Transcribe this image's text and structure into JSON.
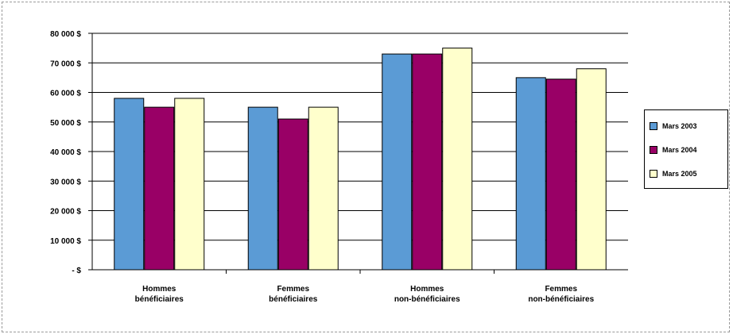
{
  "chart_data": {
    "type": "bar",
    "categories": [
      [
        "Hommes",
        "bénéficiaires"
      ],
      [
        "Femmes",
        "bénéficiaires"
      ],
      [
        "Hommes",
        "non-bénéficiaires"
      ],
      [
        "Femmes",
        "non-bénéficiaires"
      ]
    ],
    "series": [
      {
        "name": "Mars 2003",
        "color": "#5b9bd5",
        "values": [
          58000,
          55000,
          73000,
          65000
        ]
      },
      {
        "name": "Mars 2004",
        "color": "#990066",
        "values": [
          55000,
          51000,
          73000,
          64500
        ]
      },
      {
        "name": "Mars 2005",
        "color": "#ffffcc",
        "values": [
          58000,
          55000,
          75000,
          68000
        ]
      }
    ],
    "ylim": [
      0,
      80000
    ],
    "yticks": [
      {
        "value": 80000,
        "label": "80 000 $"
      },
      {
        "value": 70000,
        "label": "70 000 $"
      },
      {
        "value": 60000,
        "label": "60 000 $"
      },
      {
        "value": 50000,
        "label": "50 000 $"
      },
      {
        "value": 40000,
        "label": "40 000 $"
      },
      {
        "value": 30000,
        "label": "30 000 $"
      },
      {
        "value": 20000,
        "label": "20 000 $"
      },
      {
        "value": 10000,
        "label": "10 000 $"
      },
      {
        "value": 0,
        "label": "- $"
      }
    ],
    "grid": true,
    "legend_position": "right"
  }
}
